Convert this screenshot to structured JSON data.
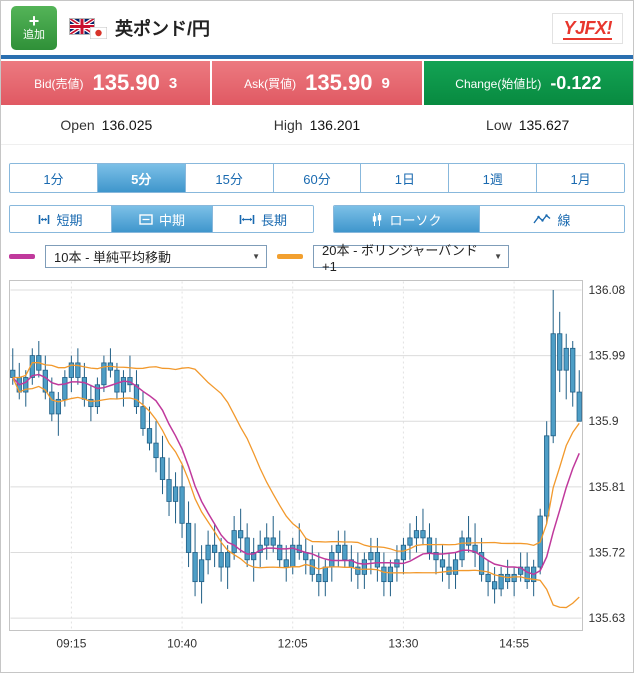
{
  "header": {
    "add_button_label": "追加",
    "pair_title": "英ポンド/円",
    "logo_text": "YJFX!"
  },
  "icons": {
    "plus": "+",
    "dropdown_arrow": "▼"
  },
  "quote": {
    "bid_label": "Bid(売値)",
    "bid_main": "135.90",
    "bid_pip": "3",
    "ask_label": "Ask(買値)",
    "ask_main": "135.90",
    "ask_pip": "9",
    "change_label": "Change(始値比)",
    "change_value": "-0.122"
  },
  "ohl": {
    "open_label": "Open",
    "open_value": "136.025",
    "high_label": "High",
    "high_value": "136.201",
    "low_label": "Low",
    "low_value": "135.627"
  },
  "period_tabs": [
    "1分",
    "5分",
    "15分",
    "60分",
    "1日",
    "1週",
    "1月"
  ],
  "range_tabs": [
    "短期",
    "中期",
    "長期"
  ],
  "style_tabs": [
    "ローソク",
    "線"
  ],
  "indicators": [
    {
      "label": "10本 - 単純平均移動",
      "color": "#c0399c"
    },
    {
      "label": "20本 - ボリンジャーバンド+1",
      "color": "#f2a02f"
    }
  ],
  "ui_colors": {
    "accent_blue": "#1a6ab0",
    "selected_tab_blue": "#3f96cc",
    "bid_ask_red": "#e4646e",
    "change_green": "#0a9648",
    "header_bar_blue": "#2a6fb0",
    "add_button_green": "#3aa043",
    "logo_red": "#e8362d"
  },
  "chart_data": {
    "type": "candlestick",
    "pair": "英ポンド/円",
    "interval": "5分",
    "y_ticks": [
      "136.08",
      "135.99",
      "135.9",
      "135.81",
      "135.72",
      "135.63"
    ],
    "x_ticks": [
      {
        "label": "09:15",
        "index": 9
      },
      {
        "label": "10:40",
        "index": 26
      },
      {
        "label": "12:05",
        "index": 43
      },
      {
        "label": "13:30",
        "index": 60
      },
      {
        "label": "14:55",
        "index": 77
      }
    ],
    "y_min": 135.613,
    "y_max": 136.093,
    "colors": {
      "candle_fill": "#4e9ec6",
      "candle_stroke": "#205f86",
      "grid": "#dcdcdc",
      "axis_text": "#333333",
      "sma_line": "#c0399c",
      "bollinger_line": "#f2992c"
    },
    "overlays": [
      {
        "id": "sma",
        "type": "sma",
        "period": 10,
        "color": "#c0399c",
        "label": "10本 - 単純平均移動"
      },
      {
        "id": "bollinger",
        "type": "bollinger",
        "period": 20,
        "mult": 1,
        "color": "#f2992c",
        "label": "20本 - ボリンジャーバンド+1"
      }
    ],
    "candles": [
      [
        135.97,
        136.0,
        135.95,
        135.96
      ],
      [
        135.96,
        135.98,
        135.93,
        135.94
      ],
      [
        135.94,
        135.97,
        135.92,
        135.96
      ],
      [
        135.96,
        136.0,
        135.95,
        135.99
      ],
      [
        135.99,
        136.01,
        135.96,
        135.97
      ],
      [
        135.97,
        135.99,
        135.93,
        135.94
      ],
      [
        135.94,
        135.96,
        135.9,
        135.91
      ],
      [
        135.91,
        135.94,
        135.88,
        135.93
      ],
      [
        135.93,
        135.97,
        135.92,
        135.96
      ],
      [
        135.96,
        135.99,
        135.94,
        135.98
      ],
      [
        135.98,
        136.0,
        135.95,
        135.96
      ],
      [
        135.96,
        135.98,
        135.92,
        135.93
      ],
      [
        135.93,
        135.95,
        135.9,
        135.92
      ],
      [
        135.92,
        135.96,
        135.91,
        135.95
      ],
      [
        135.95,
        135.99,
        135.94,
        135.98
      ],
      [
        135.98,
        136.0,
        135.96,
        135.97
      ],
      [
        135.97,
        135.98,
        135.93,
        135.94
      ],
      [
        135.94,
        135.97,
        135.92,
        135.96
      ],
      [
        135.96,
        135.99,
        135.94,
        135.95
      ],
      [
        135.95,
        135.97,
        135.91,
        135.92
      ],
      [
        135.92,
        135.94,
        135.88,
        135.89
      ],
      [
        135.89,
        135.92,
        135.86,
        135.87
      ],
      [
        135.87,
        135.9,
        135.83,
        135.85
      ],
      [
        135.85,
        135.88,
        135.8,
        135.82
      ],
      [
        135.82,
        135.85,
        135.77,
        135.79
      ],
      [
        135.79,
        135.83,
        135.76,
        135.81
      ],
      [
        135.81,
        135.84,
        135.74,
        135.76
      ],
      [
        135.76,
        135.79,
        135.7,
        135.72
      ],
      [
        135.72,
        135.76,
        135.66,
        135.68
      ],
      [
        135.68,
        135.73,
        135.65,
        135.71
      ],
      [
        135.71,
        135.75,
        135.69,
        135.73
      ],
      [
        135.73,
        135.76,
        135.7,
        135.72
      ],
      [
        135.72,
        135.74,
        135.68,
        135.7
      ],
      [
        135.7,
        135.73,
        135.67,
        135.72
      ],
      [
        135.72,
        135.77,
        135.71,
        135.75
      ],
      [
        135.75,
        135.78,
        135.72,
        135.74
      ],
      [
        135.74,
        135.76,
        135.7,
        135.71
      ],
      [
        135.71,
        135.74,
        135.68,
        135.72
      ],
      [
        135.72,
        135.75,
        135.7,
        135.73
      ],
      [
        135.73,
        135.76,
        135.71,
        135.74
      ],
      [
        135.74,
        135.77,
        135.72,
        135.73
      ],
      [
        135.73,
        135.75,
        135.7,
        135.71
      ],
      [
        135.71,
        135.73,
        135.68,
        135.7
      ],
      [
        135.7,
        135.74,
        135.69,
        135.73
      ],
      [
        135.73,
        135.76,
        135.71,
        135.72
      ],
      [
        135.72,
        135.74,
        135.69,
        135.71
      ],
      [
        135.71,
        135.73,
        135.68,
        135.69
      ],
      [
        135.69,
        135.72,
        135.66,
        135.68
      ],
      [
        135.68,
        135.71,
        135.66,
        135.7
      ],
      [
        135.7,
        135.73,
        135.68,
        135.72
      ],
      [
        135.72,
        135.75,
        135.7,
        135.73
      ],
      [
        135.73,
        135.75,
        135.7,
        135.71
      ],
      [
        135.71,
        135.73,
        135.68,
        135.7
      ],
      [
        135.7,
        135.72,
        135.67,
        135.69
      ],
      [
        135.69,
        135.72,
        135.67,
        135.71
      ],
      [
        135.71,
        135.74,
        135.69,
        135.72
      ],
      [
        135.72,
        135.74,
        135.68,
        135.7
      ],
      [
        135.7,
        135.72,
        135.66,
        135.68
      ],
      [
        135.68,
        135.71,
        135.66,
        135.7
      ],
      [
        135.7,
        135.73,
        135.68,
        135.71
      ],
      [
        135.71,
        135.74,
        135.69,
        135.73
      ],
      [
        135.73,
        135.76,
        135.71,
        135.74
      ],
      [
        135.74,
        135.77,
        135.72,
        135.75
      ],
      [
        135.75,
        135.78,
        135.73,
        135.74
      ],
      [
        135.74,
        135.76,
        135.71,
        135.72
      ],
      [
        135.72,
        135.74,
        135.69,
        135.71
      ],
      [
        135.71,
        135.73,
        135.68,
        135.7
      ],
      [
        135.7,
        135.72,
        135.67,
        135.69
      ],
      [
        135.69,
        135.72,
        135.67,
        135.71
      ],
      [
        135.71,
        135.75,
        135.7,
        135.74
      ],
      [
        135.74,
        135.77,
        135.72,
        135.73
      ],
      [
        135.73,
        135.76,
        135.7,
        135.72
      ],
      [
        135.72,
        135.74,
        135.68,
        135.69
      ],
      [
        135.69,
        135.71,
        135.66,
        135.68
      ],
      [
        135.68,
        135.7,
        135.65,
        135.67
      ],
      [
        135.67,
        135.7,
        135.66,
        135.69
      ],
      [
        135.69,
        135.71,
        135.67,
        135.68
      ],
      [
        135.68,
        135.7,
        135.66,
        135.69
      ],
      [
        135.69,
        135.72,
        135.68,
        135.7
      ],
      [
        135.7,
        135.72,
        135.67,
        135.68
      ],
      [
        135.68,
        135.71,
        135.66,
        135.7
      ],
      [
        135.7,
        135.78,
        135.69,
        135.77
      ],
      [
        135.77,
        135.9,
        135.76,
        135.88
      ],
      [
        135.88,
        136.08,
        135.87,
        136.02
      ],
      [
        136.02,
        136.05,
        135.94,
        135.97
      ],
      [
        135.97,
        136.02,
        135.93,
        136.0
      ],
      [
        136.0,
        136.01,
        135.92,
        135.94
      ],
      [
        135.94,
        135.97,
        135.9,
        135.9
      ]
    ]
  }
}
